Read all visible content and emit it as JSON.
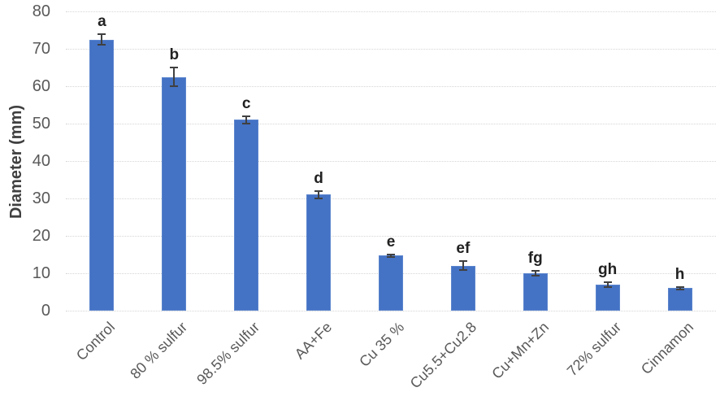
{
  "chart_data": {
    "type": "bar",
    "title": "",
    "xlabel": "",
    "ylabel": "Diameter (mm)",
    "ylim": [
      0,
      80
    ],
    "yticks": [
      0,
      10,
      20,
      30,
      40,
      50,
      60,
      70,
      80
    ],
    "grid": "horizontal dotted gridlines",
    "legend": "none",
    "x_tick_rotation_deg": -45,
    "categories": [
      "Control",
      "80 % sulfur",
      "98.5% sulfur",
      "AA+Fe",
      "Cu 35 %",
      "Cu5.5+Cu2.8",
      "Cu+Mn+Zn",
      "72% sulfur",
      "Cinnamon"
    ],
    "series": [
      {
        "name": "Diameter (mm)",
        "values": [
          72.5,
          62.5,
          51,
          31,
          14.7,
          12,
          10,
          7,
          6
        ],
        "error_bars": [
          1.5,
          2.5,
          1,
          1,
          0.4,
          1.2,
          0.6,
          0.7,
          0.3
        ],
        "significance_letters": [
          "a",
          "b",
          "c",
          "d",
          "e",
          "ef",
          "fg",
          "gh",
          "h"
        ]
      }
    ],
    "colors": {
      "bar_fill": "#4472C4",
      "bar_edge": "#5B85CE",
      "error_bar": "#404040",
      "gridline": "#D6D6D6",
      "tick_label": "#595959",
      "significance_letter": "#212121",
      "axis_title": "#3F3F3F",
      "background": "#FFFFFF"
    }
  }
}
